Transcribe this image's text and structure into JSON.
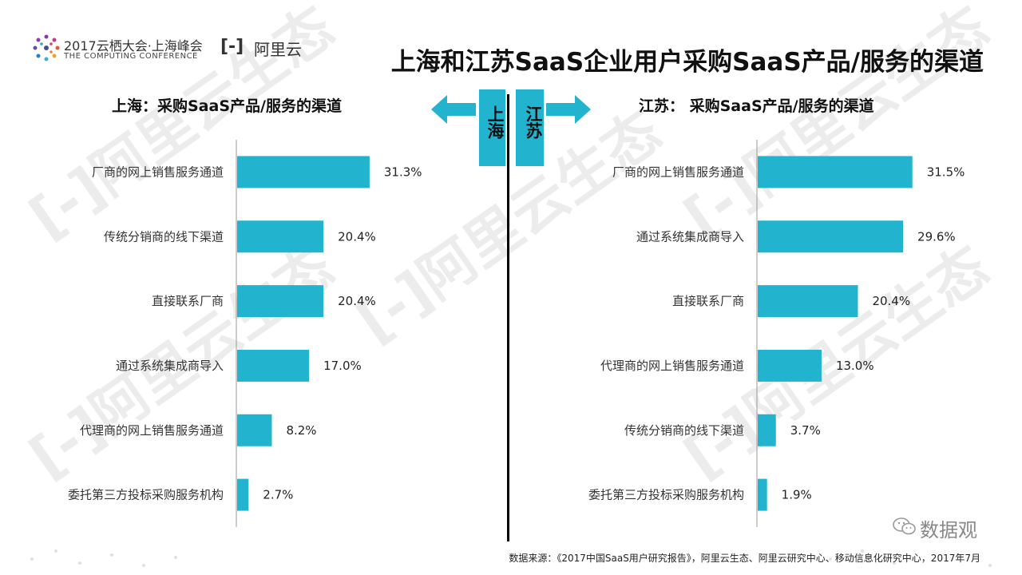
{
  "header": {
    "event_name": "2017云栖大会·上海峰会",
    "event_sub": "THE COMPUTING CONFERENCE",
    "brand_mark": "[-]",
    "brand_name": "阿里云",
    "title": "上海和江苏SaaS企业用户采购SaaS产品/服务的渠道"
  },
  "center": {
    "tag_left": "上海",
    "tag_right": "江苏"
  },
  "watermark": {
    "text": "[-]阿里云生态"
  },
  "footer": {
    "source": "数据来源：《2017中国SaaS用户研究报告》，阿里云生态、阿里云研究中心、移动信息化研究中心，2017年7月",
    "wechat_label": "数据观"
  },
  "colors": {
    "bar": "#22b3cf",
    "axis": "#999999",
    "divider": "#000000"
  },
  "chart_data": [
    {
      "type": "bar",
      "orientation": "horizontal",
      "title": "上海：采购SaaS产品/服务的渠道",
      "categories": [
        "厂商的网上销售服务通道",
        "传统分销商的线下渠道",
        "直接联系厂商",
        "通过系统集成商导入",
        "代理商的网上销售服务通道",
        "委托第三方投标采购服务机构"
      ],
      "values": [
        31.3,
        20.4,
        20.4,
        17.0,
        8.2,
        2.7
      ],
      "value_labels": [
        "31.3%",
        "20.4%",
        "20.4%",
        "17.0%",
        "8.2%",
        "2.7%"
      ],
      "xlim": [
        0,
        100
      ],
      "grid": false
    },
    {
      "type": "bar",
      "orientation": "horizontal",
      "title": "江苏： 采购SaaS产品/服务的渠道",
      "categories": [
        "厂商的网上销售服务通道",
        "通过系统集成商导入",
        "直接联系厂商",
        "代理商的网上销售服务通道",
        "传统分销商的线下渠道",
        "委托第三方投标采购服务机构"
      ],
      "values": [
        31.5,
        29.6,
        20.4,
        13.0,
        3.7,
        1.9
      ],
      "value_labels": [
        "31.5%",
        "29.6%",
        "20.4%",
        "13.0%",
        "3.7%",
        "1.9%"
      ],
      "xlim": [
        0,
        100
      ],
      "grid": false
    }
  ]
}
